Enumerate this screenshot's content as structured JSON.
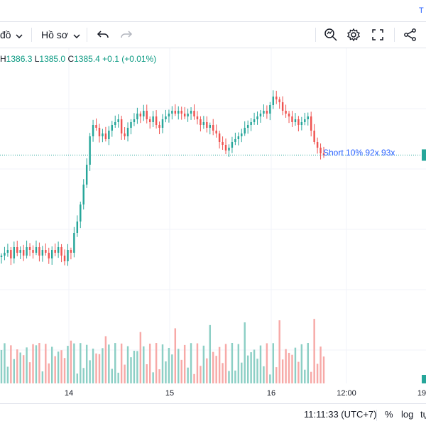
{
  "toolbar": {
    "chart_type_label": "đồ",
    "layout_label": "Hồ sơ"
  },
  "ohlc": {
    "h_label": "H",
    "h_value": "1386.3",
    "l_label": "L",
    "l_value": "1385.0",
    "c_label": "C",
    "c_value": "1385.4",
    "change": "+0.1 (+0.01%)"
  },
  "annotation": {
    "text": "Short 10% 92x 93x",
    "color": "#2962ff"
  },
  "time_axis": {
    "labels": [
      "14",
      "15",
      "16",
      "12:00",
      "19"
    ]
  },
  "bottom_bar": {
    "clock": "11:11:33 (UTC+7)",
    "percent_label": "%",
    "log_label": "log",
    "auto_label": "tự"
  },
  "colors": {
    "up": "#26a69a",
    "down": "#ef5350",
    "vol_up": "#8ccfc5",
    "vol_down": "#f7a9a7",
    "grid": "#f0f3fa",
    "price_line": "#26a69a"
  },
  "chart_data": {
    "type": "candlestick",
    "price_close_sequence": [
      1350,
      1351,
      1352,
      1349,
      1353,
      1351,
      1352,
      1350,
      1353,
      1352,
      1351,
      1353,
      1350,
      1352,
      1351,
      1349,
      1352,
      1351,
      1353,
      1350,
      1348,
      1352,
      1351,
      1358,
      1362,
      1368,
      1375,
      1382,
      1392,
      1396,
      1395,
      1392,
      1393,
      1391,
      1394,
      1396,
      1397,
      1398,
      1393,
      1392,
      1395,
      1397,
      1398,
      1400,
      1399,
      1401,
      1398,
      1397,
      1399,
      1396,
      1395,
      1398,
      1399,
      1400,
      1401,
      1400,
      1401,
      1400,
      1399,
      1400,
      1401,
      1399,
      1398,
      1396,
      1397,
      1395,
      1396,
      1394,
      1393,
      1390,
      1389,
      1387,
      1388,
      1390,
      1391,
      1392,
      1393,
      1395,
      1396,
      1397,
      1398,
      1399,
      1400,
      1401,
      1400,
      1403,
      1406,
      1405,
      1404,
      1401,
      1400,
      1399,
      1397,
      1398,
      1396,
      1397,
      1398,
      1399,
      1394,
      1390,
      1388,
      1386,
      1385.4
    ],
    "last_price": 1385.4
  }
}
